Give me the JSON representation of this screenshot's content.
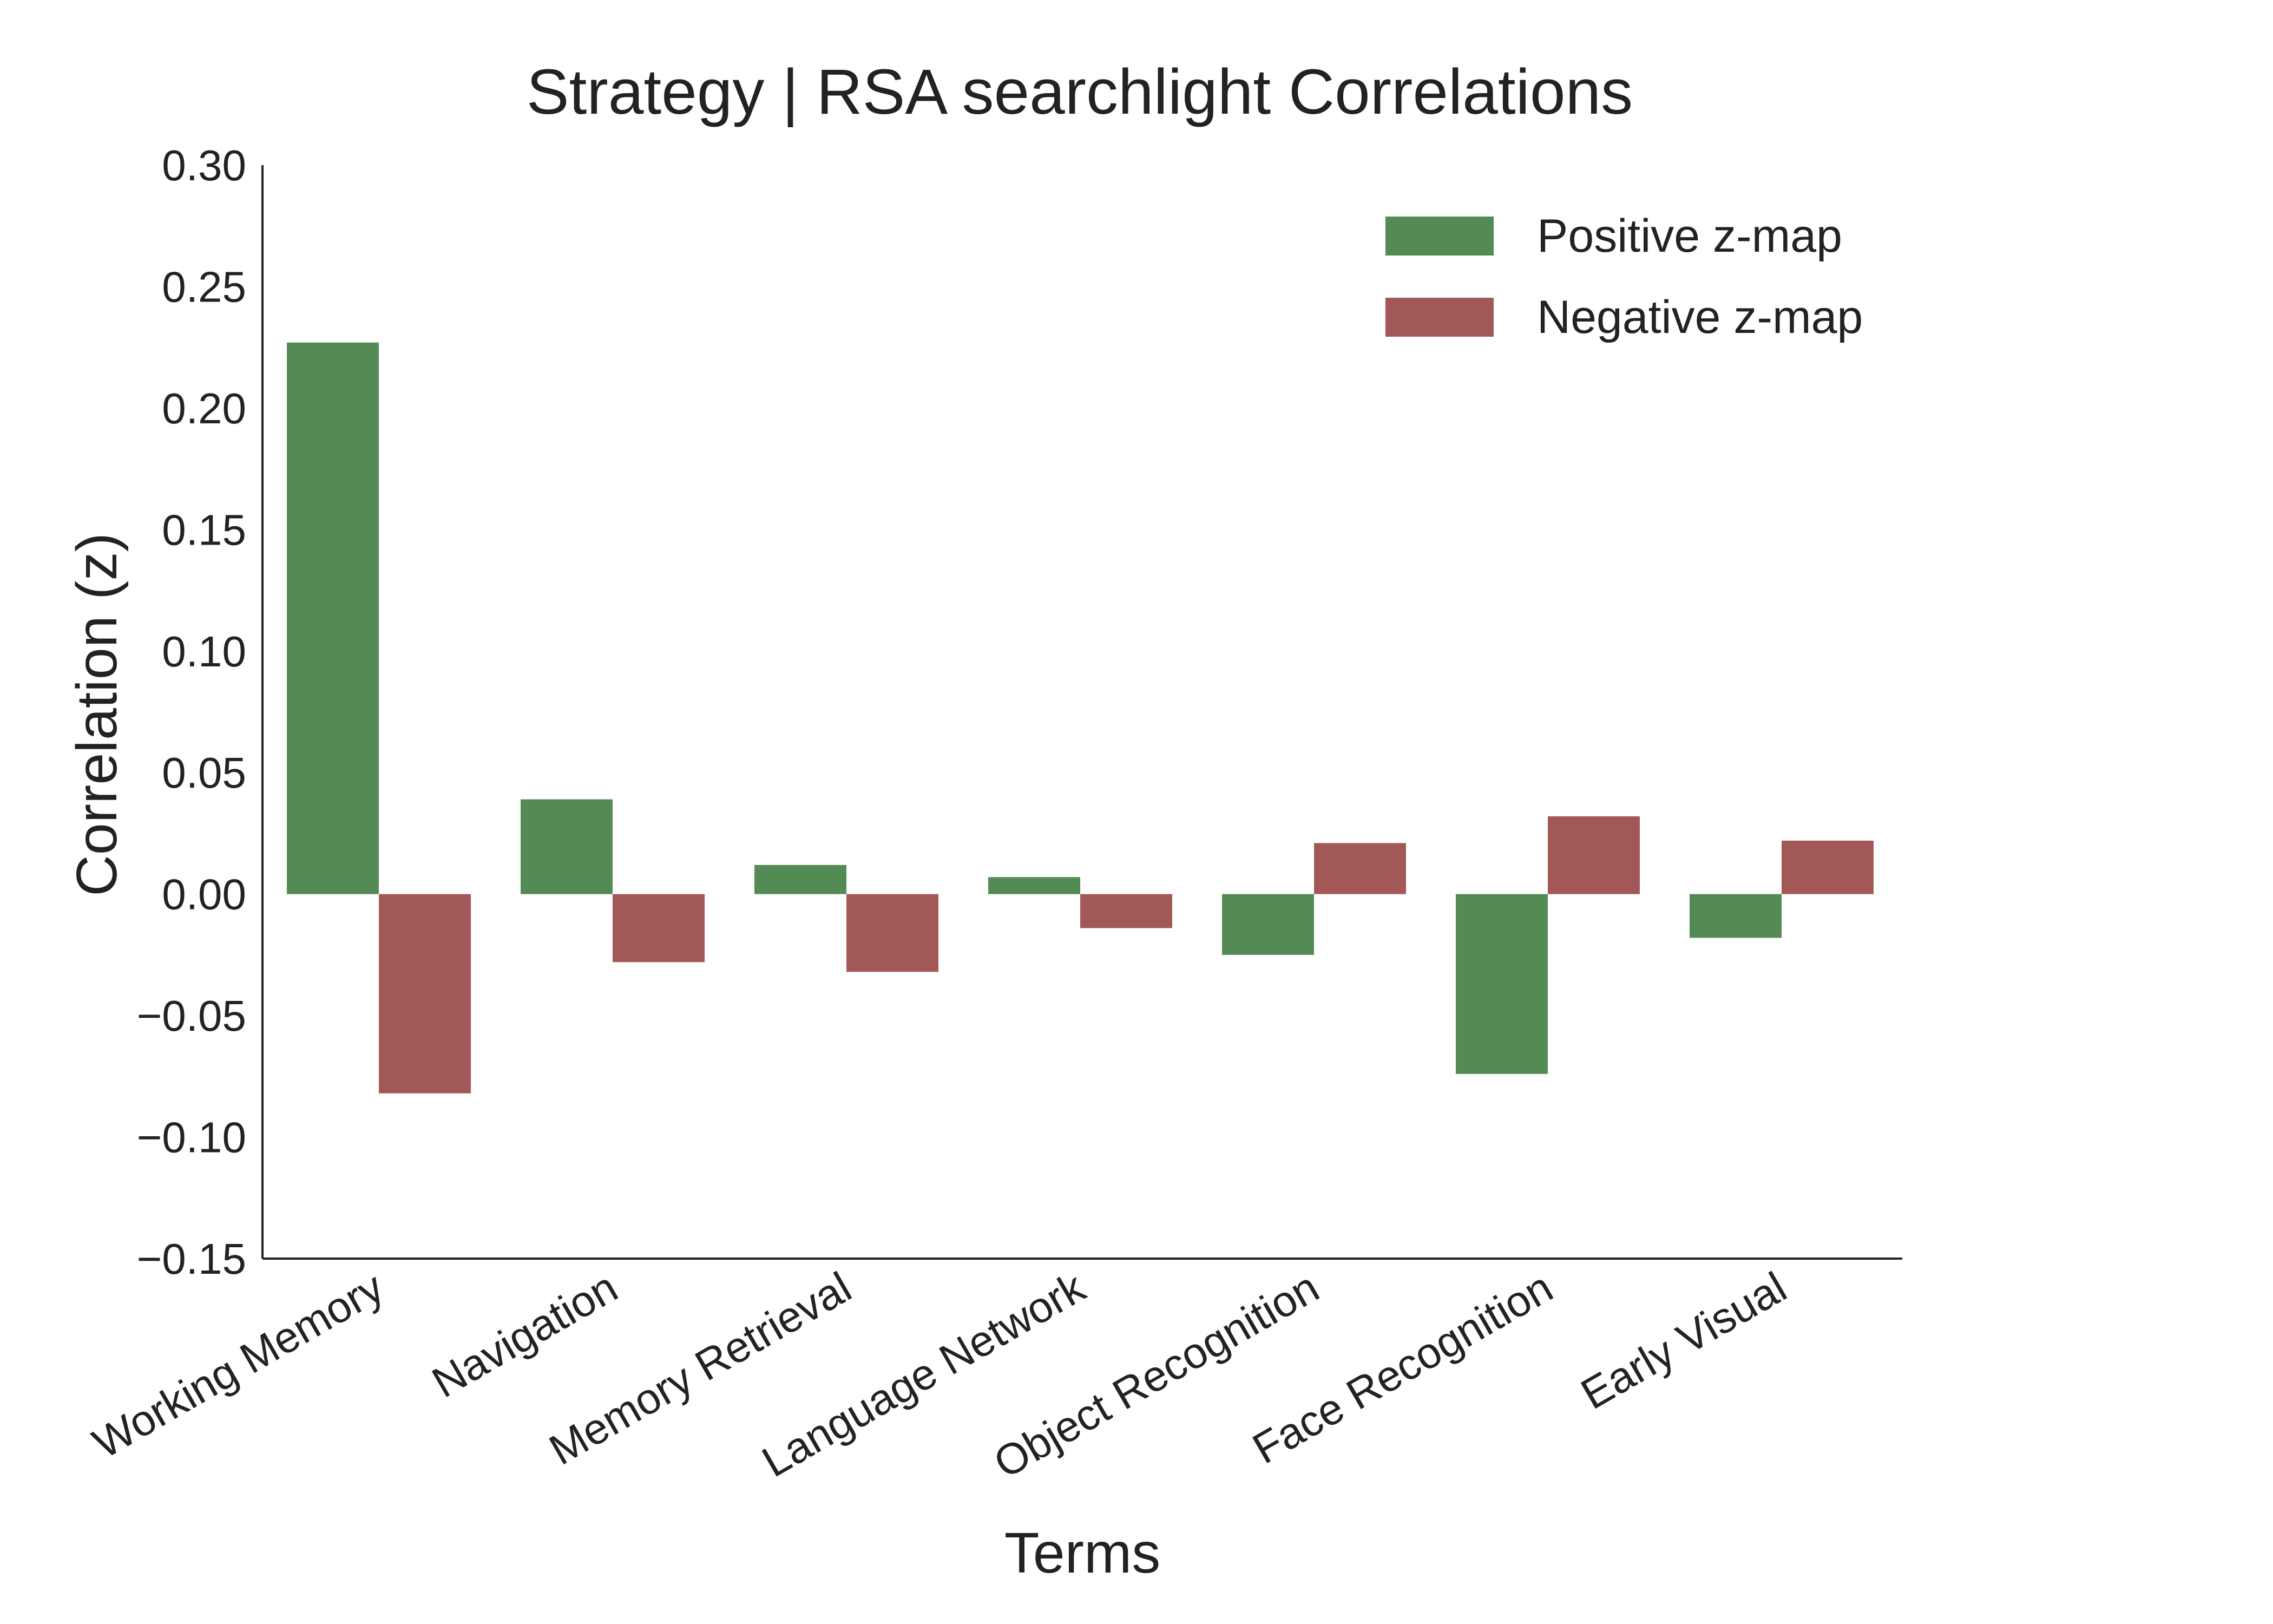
{
  "chart_data": {
    "type": "bar",
    "title": "Strategy | RSA searchlight Correlations",
    "xlabel": "Terms",
    "ylabel": "Correlation (z)",
    "ylim": [
      -0.15,
      0.3
    ],
    "yticks": [
      "0.30",
      "0.25",
      "0.20",
      "0.15",
      "0.10",
      "0.05",
      "0.00",
      "−0.05",
      "−0.10",
      "−0.15"
    ],
    "ytick_values": [
      0.3,
      0.25,
      0.2,
      0.15,
      0.1,
      0.05,
      0.0,
      -0.05,
      -0.1,
      -0.15
    ],
    "categories": [
      "Working Memory",
      "Navigation",
      "Memory Retrieval",
      "Language Network",
      "Object Recognition",
      "Face Recognition",
      "Early Visual"
    ],
    "series": [
      {
        "name": "Positive z-map",
        "color": "#548b54",
        "values": [
          0.227,
          0.039,
          0.012,
          0.007,
          -0.025,
          -0.074,
          -0.018
        ]
      },
      {
        "name": "Negative z-map",
        "color": "#a35858",
        "values": [
          -0.082,
          -0.028,
          -0.032,
          -0.014,
          0.021,
          0.032,
          0.022
        ]
      }
    ],
    "legend_position": "top-right",
    "grid": false
  }
}
